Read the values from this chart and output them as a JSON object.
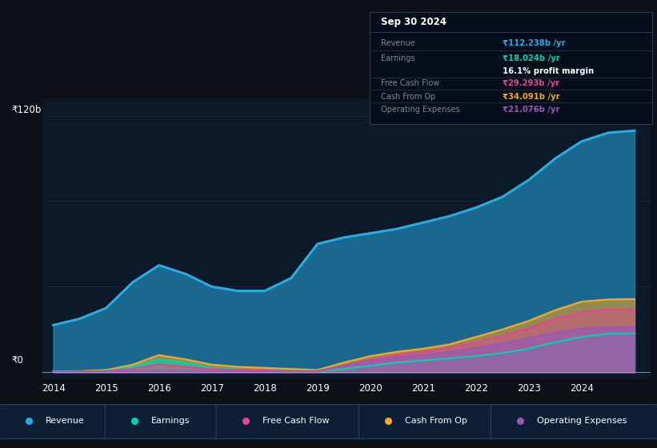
{
  "bg_color": "#0d1117",
  "chart_bg": "#0b1929",
  "years": [
    2014,
    2014.5,
    2015,
    2015.5,
    2016,
    2016.5,
    2017,
    2017.5,
    2018,
    2018.5,
    2019,
    2019.5,
    2020,
    2020.5,
    2021,
    2021.5,
    2022,
    2022.5,
    2023,
    2023.5,
    2024,
    2024.5,
    2025
  ],
  "revenue": [
    22,
    25,
    30,
    42,
    50,
    46,
    40,
    38,
    38,
    44,
    60,
    63,
    65,
    67,
    70,
    73,
    77,
    82,
    90,
    100,
    108,
    112,
    113
  ],
  "earnings": [
    0.3,
    0.4,
    0.5,
    2.5,
    6.0,
    4.5,
    2.0,
    1.2,
    0.8,
    0.5,
    0.3,
    1.5,
    3.0,
    4.5,
    5.5,
    6.5,
    7.5,
    9.0,
    11.0,
    14.0,
    16.5,
    18.0,
    18.2
  ],
  "fcf": [
    0.2,
    0.3,
    0.4,
    1.5,
    3.5,
    2.5,
    1.5,
    1.0,
    0.8,
    0.4,
    0.3,
    3.0,
    6.0,
    8.0,
    9.5,
    11.5,
    14.0,
    17.0,
    20.5,
    25.0,
    28.0,
    29.3,
    29.5
  ],
  "cashfromop": [
    0.3,
    0.5,
    1.0,
    3.5,
    8.0,
    6.0,
    3.5,
    2.5,
    2.0,
    1.5,
    1.0,
    4.5,
    7.5,
    9.5,
    11.0,
    13.0,
    16.5,
    20.0,
    24.0,
    29.0,
    33.0,
    34.0,
    34.2
  ],
  "opex": [
    0.1,
    0.2,
    0.3,
    0.4,
    0.5,
    0.5,
    0.5,
    0.5,
    0.5,
    0.5,
    0.5,
    3.0,
    5.5,
    7.0,
    8.0,
    9.5,
    11.5,
    13.5,
    16.0,
    18.5,
    20.5,
    21.0,
    21.2
  ],
  "revenue_color": "#29abe2",
  "earnings_color": "#00d4b0",
  "fcf_color": "#e84393",
  "cashfromop_color": "#f5a623",
  "opex_color": "#9b59b6",
  "ylabel_120": "₹120b",
  "ylabel_0": "₹0",
  "xlim_min": 2013.8,
  "xlim_max": 2025.3,
  "ylim_min": -3,
  "ylim_max": 128,
  "xticks": [
    2014,
    2015,
    2016,
    2017,
    2018,
    2019,
    2020,
    2021,
    2022,
    2023,
    2024
  ],
  "info_rows": [
    {
      "label": "Revenue",
      "value": "₹112.238b /yr",
      "color": "#29abe2",
      "bold_value": true
    },
    {
      "label": "Earnings",
      "value": "₹18.024b /yr",
      "color": "#00d4b0",
      "bold_value": true
    },
    {
      "label": "",
      "value": "16.1% profit margin",
      "color": "white",
      "bold_value": true
    },
    {
      "label": "Free Cash Flow",
      "value": "₹29.293b /yr",
      "color": "#e84393",
      "bold_value": true
    },
    {
      "label": "Cash From Op",
      "value": "₹34.091b /yr",
      "color": "#f5a623",
      "bold_value": true
    },
    {
      "label": "Operating Expenses",
      "value": "₹21.076b /yr",
      "color": "#9b59b6",
      "bold_value": true
    }
  ],
  "legend_items": [
    {
      "label": "Revenue",
      "color": "#29abe2"
    },
    {
      "label": "Earnings",
      "color": "#00d4b0"
    },
    {
      "label": "Free Cash Flow",
      "color": "#e84393"
    },
    {
      "label": "Cash From Op",
      "color": "#f5a623"
    },
    {
      "label": "Operating Expenses",
      "color": "#9b59b6"
    }
  ]
}
